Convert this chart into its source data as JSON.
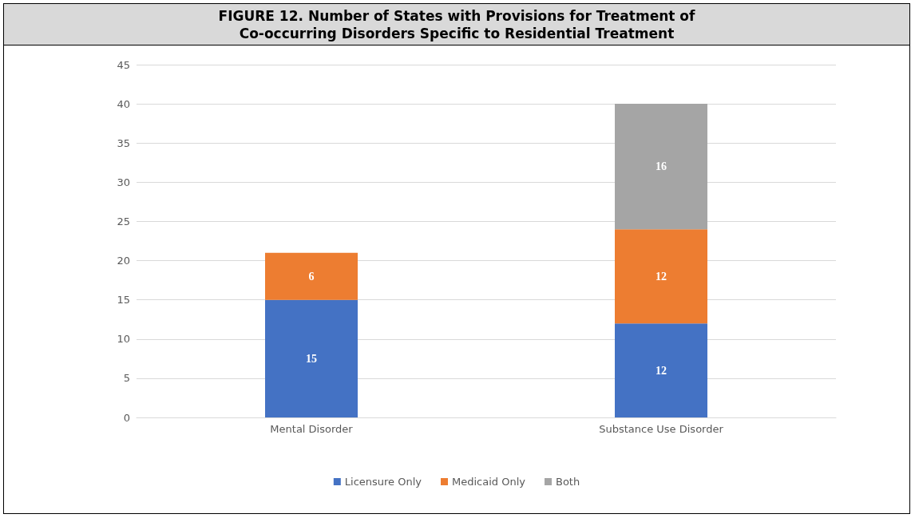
{
  "chart_data": {
    "type": "bar",
    "title": "FIGURE 12. Number of States with Provisions for Treatment of\nCo-occurring Disorders Specific to Residential Treatment",
    "categories": [
      "Mental Disorder",
      "Substance Use Disorder"
    ],
    "stacked": true,
    "series": [
      {
        "name": "Licensure Only",
        "color": "#4472c4",
        "values": [
          15,
          12
        ]
      },
      {
        "name": "Medicaid Only",
        "color": "#ed7d31",
        "values": [
          6,
          12
        ]
      },
      {
        "name": "Both",
        "color": "#a5a5a5",
        "values": [
          null,
          16
        ]
      }
    ],
    "ylim": [
      0,
      45
    ],
    "yticks": [
      0,
      5,
      10,
      15,
      20,
      25,
      30,
      35,
      40,
      45
    ],
    "grid": "y",
    "legend": "bottom",
    "data_labels": true
  }
}
